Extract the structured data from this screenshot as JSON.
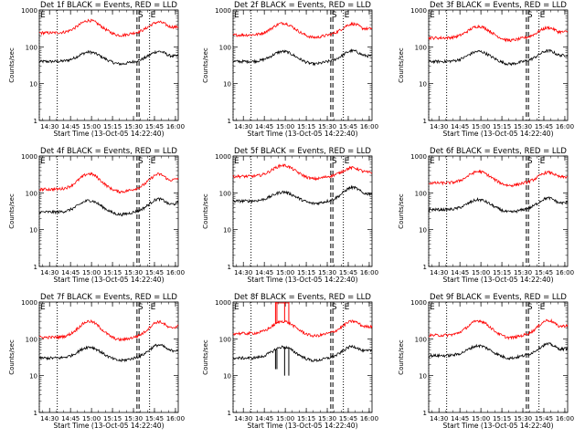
{
  "chart_data": [
    {
      "type": "line",
      "title": "Det 1f BLACK = Events, RED = LLD",
      "xlabel": "Start Time (13-Oct-05 14:22:40)",
      "ylabel": "Counts/sec",
      "x_ticks": [
        "14:30",
        "14:45",
        "15:00",
        "15:15",
        "15:30",
        "15:45",
        "16:00"
      ],
      "y_ticks": [
        "1",
        "10",
        "100",
        "1000"
      ],
      "xlim": [
        "14:22:40",
        "16:02:00"
      ],
      "ylim": [
        1,
        1000
      ],
      "y_scale": "log",
      "grid": false,
      "markers": [
        {
          "label": "E",
          "time": "14:22:40",
          "style": "dotted"
        },
        {
          "label": "",
          "time": "14:35:30",
          "style": "dotted"
        },
        {
          "label": "S",
          "time": "15:32:30",
          "style": "dashed"
        },
        {
          "label": "",
          "time": "15:34:00",
          "style": "dashed"
        },
        {
          "label": "E",
          "time": "15:41:30",
          "style": "dotted"
        }
      ],
      "series": [
        {
          "name": "Events",
          "color": "#000000",
          "base": 40,
          "peak1": 72,
          "peak2": 75,
          "end": 52
        },
        {
          "name": "LLD",
          "color": "#ff0000",
          "base": 240,
          "peak1": 520,
          "peak2": 470,
          "end": 320
        }
      ]
    },
    {
      "type": "line",
      "title": "Det 2f BLACK = Events, RED = LLD",
      "xlabel": "Start Time (13-Oct-05 14:22:40)",
      "ylabel": "Counts/sec",
      "x_ticks": [
        "14:30",
        "14:45",
        "15:00",
        "15:15",
        "15:30",
        "15:45",
        "16:00"
      ],
      "y_ticks": [
        "1",
        "10",
        "100",
        "1000"
      ],
      "xlim": [
        "14:22:40",
        "16:02:00"
      ],
      "ylim": [
        1,
        1000
      ],
      "y_scale": "log",
      "grid": false,
      "markers": [
        {
          "label": "E",
          "time": "14:22:40",
          "style": "dotted"
        },
        {
          "label": "",
          "time": "14:35:30",
          "style": "dotted"
        },
        {
          "label": "S",
          "time": "15:32:30",
          "style": "dashed"
        },
        {
          "label": "",
          "time": "15:34:00",
          "style": "dashed"
        },
        {
          "label": "E",
          "time": "15:41:30",
          "style": "dotted"
        }
      ],
      "series": [
        {
          "name": "Events",
          "color": "#000000",
          "base": 40,
          "peak1": 75,
          "peak2": 78,
          "end": 52
        },
        {
          "name": "LLD",
          "color": "#ff0000",
          "base": 210,
          "peak1": 440,
          "peak2": 420,
          "end": 290
        }
      ]
    },
    {
      "type": "line",
      "title": "Det 3f BLACK = Events, RED = LLD",
      "xlabel": "Start Time (13-Oct-05 14:22:40)",
      "ylabel": "Counts/sec",
      "x_ticks": [
        "14:30",
        "14:45",
        "15:00",
        "15:15",
        "15:30",
        "15:45",
        "16:00"
      ],
      "y_ticks": [
        "1",
        "10",
        "100",
        "1000"
      ],
      "xlim": [
        "14:22:40",
        "16:02:00"
      ],
      "ylim": [
        1,
        1000
      ],
      "y_scale": "log",
      "grid": false,
      "markers": [
        {
          "label": "E",
          "time": "14:22:40",
          "style": "dotted"
        },
        {
          "label": "",
          "time": "14:35:30",
          "style": "dotted"
        },
        {
          "label": "S",
          "time": "15:32:30",
          "style": "dashed"
        },
        {
          "label": "",
          "time": "15:34:00",
          "style": "dashed"
        },
        {
          "label": "E",
          "time": "15:41:30",
          "style": "dotted"
        }
      ],
      "series": [
        {
          "name": "Events",
          "color": "#000000",
          "base": 40,
          "peak1": 75,
          "peak2": 78,
          "end": 55
        },
        {
          "name": "LLD",
          "color": "#ff0000",
          "base": 175,
          "peak1": 360,
          "peak2": 330,
          "end": 240
        }
      ]
    },
    {
      "type": "line",
      "title": "Det 4f BLACK = Events, RED = LLD",
      "xlabel": "Start Time (13-Oct-05 14:22:40)",
      "ylabel": "Counts/sec",
      "x_ticks": [
        "14:30",
        "14:45",
        "15:00",
        "15:15",
        "15:30",
        "15:45",
        "16:00"
      ],
      "y_ticks": [
        "1",
        "10",
        "100",
        "1000"
      ],
      "xlim": [
        "14:22:40",
        "16:02:00"
      ],
      "ylim": [
        1,
        1000
      ],
      "y_scale": "log",
      "grid": false,
      "markers": [
        {
          "label": "E",
          "time": "14:22:40",
          "style": "dotted"
        },
        {
          "label": "",
          "time": "14:35:30",
          "style": "dotted"
        },
        {
          "label": "S",
          "time": "15:32:30",
          "style": "dashed"
        },
        {
          "label": "",
          "time": "15:34:00",
          "style": "dashed"
        },
        {
          "label": "E",
          "time": "15:41:30",
          "style": "dotted"
        }
      ],
      "series": [
        {
          "name": "Events",
          "color": "#000000",
          "base": 30,
          "peak1": 62,
          "peak2": 68,
          "end": 48
        },
        {
          "name": "LLD",
          "color": "#ff0000",
          "base": 125,
          "peak1": 330,
          "peak2": 320,
          "end": 220
        }
      ]
    },
    {
      "type": "line",
      "title": "Det 5f BLACK = Events, RED = LLD",
      "xlabel": "Start Time (13-Oct-05 14:22:40)",
      "ylabel": "Counts/sec",
      "x_ticks": [
        "14:30",
        "14:45",
        "15:00",
        "15:15",
        "15:30",
        "15:45",
        "16:00"
      ],
      "y_ticks": [
        "1",
        "10",
        "100",
        "1000"
      ],
      "xlim": [
        "14:22:40",
        "16:02:00"
      ],
      "ylim": [
        1,
        1000
      ],
      "y_scale": "log",
      "grid": false,
      "markers": [
        {
          "label": "E",
          "time": "14:22:40",
          "style": "dotted"
        },
        {
          "label": "",
          "time": "14:35:30",
          "style": "dotted"
        },
        {
          "label": "S",
          "time": "15:32:30",
          "style": "dashed"
        },
        {
          "label": "",
          "time": "15:34:00",
          "style": "dashed"
        },
        {
          "label": "E",
          "time": "15:41:30",
          "style": "dotted"
        }
      ],
      "series": [
        {
          "name": "Events",
          "color": "#000000",
          "base": 60,
          "peak1": 105,
          "peak2": 140,
          "end": 85
        },
        {
          "name": "LLD",
          "color": "#ff0000",
          "base": 280,
          "peak1": 560,
          "peak2": 480,
          "end": 330
        }
      ]
    },
    {
      "type": "line",
      "title": "Det 6f BLACK = Events, RED = LLD",
      "xlabel": "Start Time (13-Oct-05 14:22:40)",
      "ylabel": "Counts/sec",
      "x_ticks": [
        "14:30",
        "14:45",
        "15:00",
        "15:15",
        "15:30",
        "15:45",
        "16:00"
      ],
      "y_ticks": [
        "1",
        "10",
        "100",
        "1000"
      ],
      "xlim": [
        "14:22:40",
        "16:02:00"
      ],
      "ylim": [
        1,
        1000
      ],
      "y_scale": "log",
      "grid": false,
      "markers": [
        {
          "label": "E",
          "time": "14:22:40",
          "style": "dotted"
        },
        {
          "label": "",
          "time": "14:35:30",
          "style": "dotted"
        },
        {
          "label": "S",
          "time": "15:32:30",
          "style": "dashed"
        },
        {
          "label": "",
          "time": "15:34:00",
          "style": "dashed"
        },
        {
          "label": "E",
          "time": "15:41:30",
          "style": "dotted"
        }
      ],
      "series": [
        {
          "name": "Events",
          "color": "#000000",
          "base": 35,
          "peak1": 65,
          "peak2": 72,
          "end": 50
        },
        {
          "name": "LLD",
          "color": "#ff0000",
          "base": 185,
          "peak1": 380,
          "peak2": 360,
          "end": 250
        }
      ]
    },
    {
      "type": "line",
      "title": "Det 7f BLACK = Events, RED = LLD",
      "xlabel": "Start Time (13-Oct-05 14:22:40)",
      "ylabel": "Counts/sec",
      "x_ticks": [
        "14:30",
        "14:45",
        "15:00",
        "15:15",
        "15:30",
        "15:45",
        "16:00"
      ],
      "y_ticks": [
        "1",
        "10",
        "100",
        "1000"
      ],
      "xlim": [
        "14:22:40",
        "16:02:00"
      ],
      "ylim": [
        1,
        1000
      ],
      "y_scale": "log",
      "grid": false,
      "markers": [
        {
          "label": "E",
          "time": "14:22:40",
          "style": "dotted"
        },
        {
          "label": "",
          "time": "14:35:30",
          "style": "dotted"
        },
        {
          "label": "S",
          "time": "15:32:30",
          "style": "dashed"
        },
        {
          "label": "",
          "time": "15:34:00",
          "style": "dashed"
        },
        {
          "label": "E",
          "time": "15:41:30",
          "style": "dotted"
        }
      ],
      "series": [
        {
          "name": "Events",
          "color": "#000000",
          "base": 30,
          "peak1": 60,
          "peak2": 68,
          "end": 45
        },
        {
          "name": "LLD",
          "color": "#ff0000",
          "base": 110,
          "peak1": 300,
          "peak2": 290,
          "end": 200
        }
      ]
    },
    {
      "type": "line",
      "title": "Det 8f BLACK = Events, RED = LLD",
      "xlabel": "Start Time (13-Oct-05 14:22:40)",
      "ylabel": "Counts/sec",
      "x_ticks": [
        "14:30",
        "14:45",
        "15:00",
        "15:15",
        "15:30",
        "15:45",
        "16:00"
      ],
      "y_ticks": [
        "1",
        "10",
        "100",
        "1000"
      ],
      "xlim": [
        "14:22:40",
        "16:02:00"
      ],
      "ylim": [
        1,
        1000
      ],
      "y_scale": "log",
      "grid": false,
      "markers": [
        {
          "label": "E",
          "time": "14:22:40",
          "style": "dotted"
        },
        {
          "label": "",
          "time": "14:35:30",
          "style": "dotted"
        },
        {
          "label": "S",
          "time": "15:32:30",
          "style": "dashed"
        },
        {
          "label": "",
          "time": "15:34:00",
          "style": "dashed"
        },
        {
          "label": "E",
          "time": "15:41:30",
          "style": "dotted"
        }
      ],
      "spikes": [
        {
          "time": "14:53:00",
          "red_to": 1000,
          "black_to": 15
        },
        {
          "time": "14:54:00",
          "red_to": 1000,
          "black_to": 15
        },
        {
          "time": "14:59:30",
          "red_to": 1000,
          "black_to": 10
        },
        {
          "time": "15:02:30",
          "red_to": 1000,
          "black_to": 10
        }
      ],
      "series": [
        {
          "name": "Events",
          "color": "#000000",
          "base": 30,
          "peak1": 60,
          "peak2": 62,
          "end": 45
        },
        {
          "name": "LLD",
          "color": "#ff0000",
          "base": 140,
          "peak1": 300,
          "peak2": 300,
          "end": 200
        }
      ]
    },
    {
      "type": "line",
      "title": "Det 9f BLACK = Events, RED = LLD",
      "xlabel": "Start Time (13-Oct-05 14:22:40)",
      "ylabel": "Counts/sec",
      "x_ticks": [
        "14:30",
        "14:45",
        "15:00",
        "15:15",
        "15:30",
        "15:45",
        "16:00"
      ],
      "y_ticks": [
        "1",
        "10",
        "100",
        "1000"
      ],
      "xlim": [
        "14:22:40",
        "16:02:00"
      ],
      "ylim": [
        1,
        1000
      ],
      "y_scale": "log",
      "grid": false,
      "markers": [
        {
          "label": "E",
          "time": "14:22:40",
          "style": "dotted"
        },
        {
          "label": "",
          "time": "14:35:30",
          "style": "dotted"
        },
        {
          "label": "S",
          "time": "15:32:30",
          "style": "dashed"
        },
        {
          "label": "",
          "time": "15:34:00",
          "style": "dashed"
        },
        {
          "label": "E",
          "time": "15:41:30",
          "style": "dotted"
        }
      ],
      "series": [
        {
          "name": "Events",
          "color": "#000000",
          "base": 35,
          "peak1": 65,
          "peak2": 72,
          "end": 50
        },
        {
          "name": "LLD",
          "color": "#ff0000",
          "base": 125,
          "peak1": 310,
          "peak2": 320,
          "end": 210
        }
      ]
    }
  ]
}
